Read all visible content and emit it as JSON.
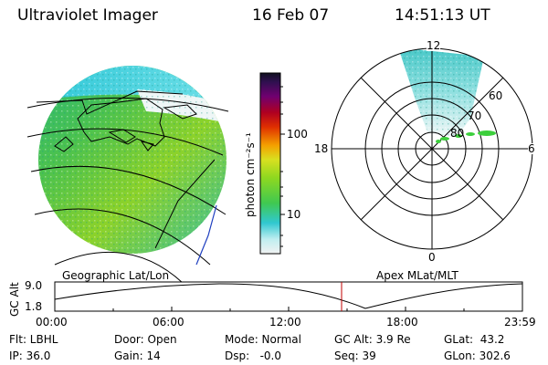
{
  "header": {
    "instrument": "Ultraviolet Imager",
    "date": "16 Feb 07",
    "time": "14:51:13 UT"
  },
  "colorbar": {
    "label": "photon cm⁻²s⁻¹",
    "ticks": [
      "100",
      "10"
    ]
  },
  "polar_plot": {
    "hour_labels": {
      "top": "12",
      "left": "18",
      "right": "6",
      "bottom": "0"
    },
    "lat_labels": [
      "60",
      "70",
      "80"
    ]
  },
  "map_labels": {
    "left": "Geographic Lat/Lon",
    "right": "Apex MLat/MLT"
  },
  "altitude_plot": {
    "ylabel": "GC Alt",
    "ymax": "9.0",
    "ymin": "1.8",
    "x_ticks": [
      "00:00",
      "06:00",
      "12:00",
      "18:00",
      "23:59"
    ]
  },
  "info": {
    "row1": {
      "flt": "Flt: LBHL",
      "door": "Door: Open",
      "mode": "Mode: Normal",
      "gcalt": "GC Alt: 3.9 Re",
      "glat": "GLat:  43.2"
    },
    "row2": {
      "ip": "IP: 36.0",
      "gain": "Gain: 14",
      "dsp": "Dsp:   -0.0",
      "seq": "Seq: 39",
      "glon": "GLon: 302.6"
    }
  },
  "colors": {
    "accent_marker": "#c00000",
    "aurora_green": "#3ccf3c"
  }
}
